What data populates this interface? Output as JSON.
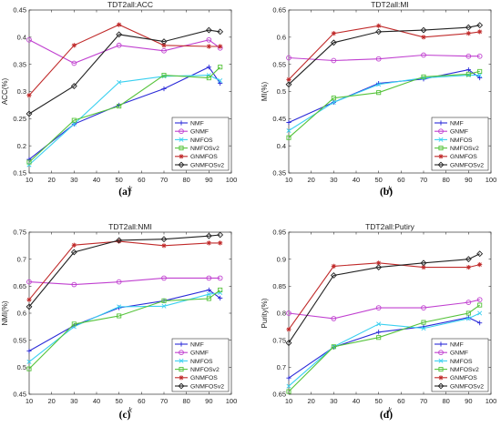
{
  "figure": {
    "series_styles": [
      {
        "name": "NMF",
        "color": "#2a2ad8",
        "marker": "plus"
      },
      {
        "name": "GNMF",
        "color": "#c040d0",
        "marker": "circle"
      },
      {
        "name": "NMFOS",
        "color": "#3ad0f0",
        "marker": "x"
      },
      {
        "name": "NMFOSv2",
        "color": "#55c33a",
        "marker": "square"
      },
      {
        "name": "GNMFOS",
        "color": "#c02a2a",
        "marker": "star"
      },
      {
        "name": "GNMFOSv2",
        "color": "#222222",
        "marker": "diamond"
      }
    ]
  },
  "chart_data": [
    {
      "type": "line",
      "panel_label": "(a)",
      "title": "TDT2all:ACC",
      "xlabel": "k",
      "ylabel": "ACC(%)",
      "xlim": [
        10,
        100
      ],
      "ylim": [
        0.15,
        0.45
      ],
      "xticks": [
        "10",
        "20",
        "30",
        "40",
        "50",
        "60",
        "70",
        "80",
        "90",
        "100"
      ],
      "yticks": [
        "0.15",
        "0.2",
        "0.25",
        "0.3",
        "0.35",
        "0.4",
        "0.45"
      ],
      "legend_position": "lower-right",
      "x": [
        10,
        30,
        50,
        70,
        90,
        95
      ],
      "series": [
        {
          "name": "NMF",
          "values": [
            0.175,
            0.24,
            0.275,
            0.305,
            0.345,
            0.315
          ]
        },
        {
          "name": "GNMF",
          "values": [
            0.395,
            0.352,
            0.385,
            0.375,
            0.395,
            0.38
          ]
        },
        {
          "name": "NMFOS",
          "values": [
            0.165,
            0.24,
            0.317,
            0.328,
            0.33,
            0.32
          ]
        },
        {
          "name": "NMFOSv2",
          "values": [
            0.17,
            0.247,
            0.273,
            0.33,
            0.325,
            0.345
          ]
        },
        {
          "name": "GNMFOS",
          "values": [
            0.293,
            0.385,
            0.423,
            0.385,
            0.383,
            0.383
          ]
        },
        {
          "name": "GNMFOSv2",
          "values": [
            0.259,
            0.31,
            0.405,
            0.392,
            0.413,
            0.41
          ]
        }
      ]
    },
    {
      "type": "line",
      "panel_label": "(b)",
      "title": "TDT2all:MI",
      "xlabel": "k",
      "ylabel": "MI(%)",
      "xlim": [
        10,
        100
      ],
      "ylim": [
        0.35,
        0.65
      ],
      "xticks": [
        "10",
        "20",
        "30",
        "40",
        "50",
        "60",
        "70",
        "80",
        "90",
        "100"
      ],
      "yticks": [
        "0.35",
        "0.4",
        "0.45",
        "0.5",
        "0.55",
        "0.6",
        "0.65"
      ],
      "legend_position": "lower-right",
      "x": [
        10,
        30,
        50,
        70,
        90,
        95
      ],
      "series": [
        {
          "name": "NMF",
          "values": [
            0.443,
            0.48,
            0.515,
            0.523,
            0.54,
            0.525
          ]
        },
        {
          "name": "GNMF",
          "values": [
            0.562,
            0.557,
            0.56,
            0.567,
            0.565,
            0.565
          ]
        },
        {
          "name": "NMFOS",
          "values": [
            0.428,
            0.48,
            0.513,
            0.525,
            0.53,
            0.53
          ]
        },
        {
          "name": "NMFOSv2",
          "values": [
            0.415,
            0.488,
            0.498,
            0.527,
            0.532,
            0.537
          ]
        },
        {
          "name": "GNMFOS",
          "values": [
            0.522,
            0.607,
            0.621,
            0.6,
            0.607,
            0.61
          ]
        },
        {
          "name": "GNMFOSv2",
          "values": [
            0.513,
            0.59,
            0.61,
            0.613,
            0.618,
            0.622
          ]
        }
      ]
    },
    {
      "type": "line",
      "panel_label": "(c)",
      "title": "TDT2all:NMI",
      "xlabel": "k",
      "ylabel": "NMI(%)",
      "xlim": [
        10,
        100
      ],
      "ylim": [
        0.45,
        0.75
      ],
      "xticks": [
        "10",
        "20",
        "30",
        "40",
        "50",
        "60",
        "70",
        "80",
        "90",
        "100"
      ],
      "yticks": [
        "0.45",
        "0.5",
        "0.55",
        "0.6",
        "0.65",
        "0.7",
        "0.75"
      ],
      "legend_position": "lower-right",
      "x": [
        10,
        30,
        50,
        70,
        90,
        95
      ],
      "series": [
        {
          "name": "NMF",
          "values": [
            0.53,
            0.577,
            0.61,
            0.623,
            0.643,
            0.628
          ]
        },
        {
          "name": "GNMF",
          "values": [
            0.658,
            0.653,
            0.658,
            0.665,
            0.665,
            0.665
          ]
        },
        {
          "name": "NMFOS",
          "values": [
            0.51,
            0.575,
            0.612,
            0.613,
            0.635,
            0.638
          ]
        },
        {
          "name": "NMFOSv2",
          "values": [
            0.497,
            0.58,
            0.595,
            0.623,
            0.627,
            0.643
          ]
        },
        {
          "name": "GNMFOS",
          "values": [
            0.625,
            0.726,
            0.733,
            0.725,
            0.73,
            0.73
          ]
        },
        {
          "name": "GNMFOSv2",
          "values": [
            0.612,
            0.713,
            0.735,
            0.737,
            0.743,
            0.745
          ]
        }
      ]
    },
    {
      "type": "line",
      "panel_label": "(d)",
      "title": "TDT2all:Putiry",
      "xlabel": "k",
      "ylabel": "Purity(%)",
      "xlim": [
        10,
        100
      ],
      "ylim": [
        0.65,
        0.95
      ],
      "xticks": [
        "10",
        "20",
        "30",
        "40",
        "50",
        "60",
        "70",
        "80",
        "90",
        "100"
      ],
      "yticks": [
        "0.65",
        "0.7",
        "0.75",
        "0.8",
        "0.85",
        "0.9",
        "0.95"
      ],
      "legend_position": "lower-right",
      "x": [
        10,
        30,
        50,
        70,
        90,
        95
      ],
      "series": [
        {
          "name": "NMF",
          "values": [
            0.68,
            0.737,
            0.765,
            0.775,
            0.792,
            0.782
          ]
        },
        {
          "name": "GNMF",
          "values": [
            0.8,
            0.79,
            0.81,
            0.81,
            0.82,
            0.825
          ]
        },
        {
          "name": "NMFOS",
          "values": [
            0.665,
            0.738,
            0.78,
            0.772,
            0.79,
            0.8
          ]
        },
        {
          "name": "NMFOSv2",
          "values": [
            0.655,
            0.738,
            0.755,
            0.783,
            0.8,
            0.815
          ]
        },
        {
          "name": "GNMFOS",
          "values": [
            0.77,
            0.887,
            0.893,
            0.885,
            0.885,
            0.89
          ]
        },
        {
          "name": "GNMFOSv2",
          "values": [
            0.745,
            0.87,
            0.885,
            0.893,
            0.9,
            0.91
          ]
        }
      ]
    }
  ]
}
